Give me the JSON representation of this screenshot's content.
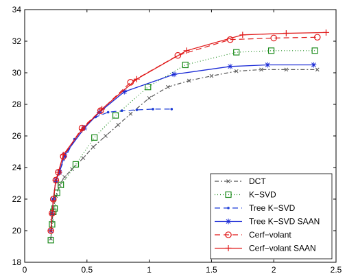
{
  "chart_data": {
    "type": "line",
    "title": "",
    "xlabel": "",
    "ylabel": "",
    "xlim": [
      0,
      2.5
    ],
    "ylim": [
      18,
      34
    ],
    "xticks": [
      0,
      0.5,
      1,
      1.5,
      2,
      2.5
    ],
    "yticks": [
      18,
      20,
      22,
      24,
      26,
      28,
      30,
      32,
      34
    ],
    "xtick_labels": [
      "0",
      "0.5",
      "1",
      "1.5",
      "2",
      "2.5"
    ],
    "ytick_labels": [
      "18",
      "20",
      "22",
      "24",
      "26",
      "28",
      "30",
      "32",
      "34"
    ],
    "grid": false,
    "legend_position": "bottom-right",
    "series": [
      {
        "name": "DCT",
        "color": "#555555",
        "dash": "6,3,2,3",
        "marker": "x",
        "x": [
          0.21,
          0.22,
          0.23,
          0.25,
          0.28,
          0.32,
          0.38,
          0.47,
          0.55,
          0.65,
          0.75,
          0.85,
          1.0,
          1.15,
          1.32,
          1.5,
          1.7,
          1.9,
          2.1,
          2.35
        ],
        "y": [
          19.5,
          20.6,
          21.3,
          22.2,
          22.9,
          23.4,
          23.9,
          24.6,
          25.3,
          26.0,
          26.7,
          27.4,
          28.4,
          29.1,
          29.5,
          29.8,
          30.1,
          30.2,
          30.2,
          30.2
        ]
      },
      {
        "name": "K−SVD",
        "color": "#1a8a1a",
        "dash": "1,3",
        "marker": "square",
        "x": [
          0.21,
          0.22,
          0.23,
          0.24,
          0.26,
          0.29,
          0.34,
          0.41,
          0.56,
          0.73,
          0.99,
          1.29,
          1.7,
          1.98,
          2.33
        ],
        "y": [
          19.4,
          20.4,
          21.2,
          21.4,
          22.4,
          22.9,
          23.4,
          24.2,
          25.9,
          27.3,
          29.1,
          30.5,
          31.3,
          31.4,
          31.4
        ],
        "markers_at": [
          0,
          1,
          2,
          3,
          4,
          5,
          7,
          8,
          9,
          10,
          11,
          12,
          13,
          14
        ]
      },
      {
        "name": "Tree K−SVD",
        "color": "#1a3ad6",
        "dash": "8,5",
        "marker": "dot",
        "x": [
          0.21,
          0.22,
          0.23,
          0.25,
          0.28,
          0.33,
          0.4,
          0.48,
          0.57,
          0.67,
          0.78,
          0.9,
          1.03,
          1.18
        ],
        "y": [
          20.0,
          21.1,
          22.0,
          23.1,
          23.8,
          24.7,
          25.8,
          26.6,
          27.2,
          27.5,
          27.6,
          27.65,
          27.7,
          27.7
        ]
      },
      {
        "name": "Tree K−SVD SAAN",
        "color": "#1a2ad6",
        "dash": "",
        "marker": "star",
        "x": [
          0.21,
          0.22,
          0.23,
          0.25,
          0.28,
          0.32,
          0.48,
          0.6,
          0.8,
          1.2,
          1.65,
          1.95,
          2.32
        ],
        "y": [
          20.0,
          21.1,
          22.0,
          23.2,
          23.7,
          24.8,
          26.5,
          27.5,
          28.8,
          29.9,
          30.4,
          30.5,
          30.5
        ]
      },
      {
        "name": "Cerf−volant",
        "color": "#e01818",
        "dash": "8,5",
        "marker": "circle",
        "x": [
          0.21,
          0.22,
          0.23,
          0.25,
          0.27,
          0.31,
          0.46,
          0.61,
          0.85,
          1.23,
          1.65,
          2.0,
          2.35
        ],
        "y": [
          20.0,
          21.1,
          22.0,
          23.2,
          23.7,
          24.7,
          26.5,
          27.6,
          29.4,
          31.1,
          32.1,
          32.2,
          32.25
        ]
      },
      {
        "name": "Cerf−volant SAAN",
        "color": "#e01818",
        "dash": "",
        "marker": "plus",
        "x": [
          0.21,
          0.22,
          0.23,
          0.25,
          0.27,
          0.31,
          0.46,
          0.62,
          0.9,
          1.3,
          1.75,
          2.1,
          2.42
        ],
        "y": [
          20.0,
          21.1,
          21.9,
          23.2,
          23.7,
          24.8,
          26.4,
          27.7,
          29.6,
          31.4,
          32.4,
          32.5,
          32.55
        ]
      }
    ]
  }
}
